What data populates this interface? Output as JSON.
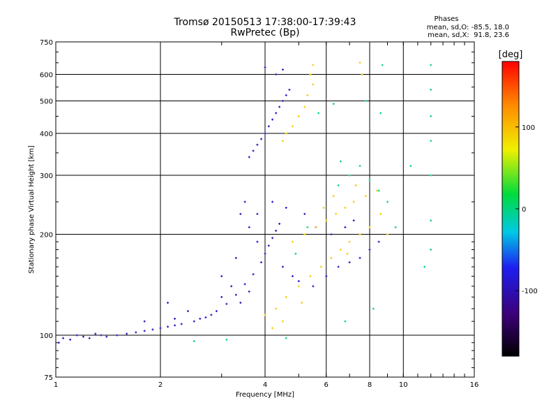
{
  "chart_data": {
    "type": "scatter",
    "title": "Tromsø 20150513 17:38:00-17:39:43",
    "subtitle": "RwPretec (Bp)",
    "xlabel": "Frequency [MHz]",
    "ylabel": "Stationary phase Virtual Height [km]",
    "x_scale": "log",
    "y_scale": "log",
    "xlim": [
      1,
      16
    ],
    "ylim": [
      75,
      750
    ],
    "x_ticks": [
      1,
      2,
      4,
      6,
      8,
      10,
      16
    ],
    "y_ticks": [
      75,
      100,
      200,
      300,
      400,
      500,
      600,
      750
    ],
    "grid": true,
    "legend": {
      "title": "Phases",
      "line1": "mean, sd,O: -85.5, 18.0",
      "line2": "mean, sd,X:  91.8, 23.6"
    },
    "colorbar": {
      "label": "[deg]",
      "range": [
        -180,
        180
      ],
      "ticks": [
        100,
        0,
        -100
      ]
    },
    "series": [
      {
        "mode": "O",
        "phase_deg": -95,
        "points": [
          [
            1.02,
            95
          ],
          [
            1.05,
            98
          ],
          [
            1.1,
            97
          ],
          [
            1.15,
            100
          ],
          [
            1.2,
            99
          ],
          [
            1.25,
            98
          ],
          [
            1.3,
            101
          ],
          [
            1.35,
            100
          ],
          [
            1.4,
            99
          ],
          [
            1.5,
            100
          ],
          [
            1.6,
            101
          ],
          [
            1.7,
            102
          ],
          [
            1.8,
            103
          ],
          [
            1.9,
            104
          ],
          [
            2.0,
            105
          ],
          [
            2.1,
            106
          ],
          [
            2.2,
            107
          ],
          [
            2.3,
            108
          ],
          [
            2.5,
            110
          ],
          [
            2.7,
            113
          ],
          [
            2.9,
            118
          ],
          [
            3.1,
            124
          ],
          [
            3.3,
            132
          ],
          [
            3.5,
            142
          ],
          [
            3.7,
            152
          ],
          [
            3.9,
            165
          ],
          [
            4.0,
            175
          ],
          [
            4.1,
            185
          ],
          [
            4.2,
            195
          ],
          [
            4.3,
            205
          ],
          [
            4.4,
            215
          ],
          [
            3.6,
            340
          ],
          [
            3.7,
            355
          ],
          [
            3.8,
            370
          ],
          [
            3.9,
            385
          ],
          [
            4.0,
            400
          ],
          [
            4.1,
            420
          ],
          [
            4.2,
            440
          ],
          [
            4.3,
            460
          ],
          [
            4.4,
            480
          ],
          [
            4.5,
            500
          ],
          [
            4.6,
            520
          ],
          [
            4.7,
            540
          ],
          [
            4.3,
            600
          ],
          [
            4.5,
            620
          ],
          [
            4.0,
            630
          ],
          [
            3.4,
            230
          ],
          [
            3.5,
            250
          ],
          [
            3.6,
            210
          ],
          [
            3.8,
            190
          ],
          [
            4.5,
            160
          ],
          [
            4.8,
            150
          ],
          [
            5.0,
            145
          ],
          [
            5.5,
            140
          ],
          [
            6.0,
            150
          ],
          [
            6.5,
            160
          ],
          [
            7.0,
            165
          ],
          [
            7.5,
            170
          ],
          [
            8.0,
            180
          ],
          [
            8.5,
            190
          ],
          [
            3.0,
            130
          ],
          [
            3.2,
            140
          ],
          [
            3.4,
            125
          ],
          [
            3.6,
            135
          ],
          [
            2.6,
            112
          ],
          [
            2.8,
            115
          ],
          [
            1.8,
            110
          ],
          [
            2.2,
            112
          ],
          [
            2.4,
            118
          ],
          [
            2.1,
            125
          ],
          [
            3.0,
            150
          ],
          [
            3.3,
            170
          ],
          [
            3.8,
            230
          ],
          [
            4.2,
            250
          ],
          [
            4.6,
            240
          ],
          [
            5.2,
            230
          ],
          [
            5.6,
            210
          ],
          [
            6.2,
            200
          ],
          [
            6.8,
            210
          ],
          [
            7.2,
            220
          ]
        ]
      },
      {
        "mode": "X",
        "phase_deg": 92,
        "points": [
          [
            5.4,
            600
          ],
          [
            5.5,
            560
          ],
          [
            5.3,
            520
          ],
          [
            5.2,
            480
          ],
          [
            5.0,
            450
          ],
          [
            4.8,
            420
          ],
          [
            4.6,
            400
          ],
          [
            4.5,
            380
          ],
          [
            5.5,
            640
          ],
          [
            7.5,
            650
          ],
          [
            7.6,
            600
          ],
          [
            4.0,
            115
          ],
          [
            4.3,
            120
          ],
          [
            4.6,
            130
          ],
          [
            5.0,
            140
          ],
          [
            5.4,
            150
          ],
          [
            5.8,
            160
          ],
          [
            6.2,
            170
          ],
          [
            6.6,
            180
          ],
          [
            7.0,
            190
          ],
          [
            7.5,
            200
          ],
          [
            8.0,
            210
          ],
          [
            4.8,
            190
          ],
          [
            5.2,
            200
          ],
          [
            5.6,
            210
          ],
          [
            6.0,
            220
          ],
          [
            6.4,
            230
          ],
          [
            6.8,
            240
          ],
          [
            7.2,
            250
          ],
          [
            7.8,
            260
          ],
          [
            8.4,
            270
          ],
          [
            4.2,
            105
          ],
          [
            4.5,
            110
          ],
          [
            5.1,
            125
          ],
          [
            6.9,
            175
          ],
          [
            8.6,
            230
          ],
          [
            9.0,
            200
          ],
          [
            5.9,
            240
          ],
          [
            6.3,
            260
          ],
          [
            7.3,
            280
          ]
        ]
      },
      {
        "mode": "scatter",
        "phase_deg": 0,
        "points": [
          [
            6.5,
            280
          ],
          [
            7.0,
            300
          ],
          [
            7.5,
            320
          ],
          [
            8.0,
            290
          ],
          [
            8.5,
            270
          ],
          [
            9.0,
            250
          ],
          [
            10.5,
            320
          ],
          [
            12.0,
            640
          ],
          [
            12.0,
            540
          ],
          [
            12.0,
            450
          ],
          [
            12.0,
            380
          ],
          [
            12.0,
            300
          ],
          [
            12.0,
            220
          ],
          [
            12.0,
            180
          ],
          [
            11.5,
            160
          ],
          [
            8.7,
            640
          ],
          [
            7.8,
            500
          ],
          [
            6.3,
            490
          ],
          [
            5.7,
            460
          ],
          [
            8.6,
            460
          ],
          [
            9.5,
            210
          ],
          [
            8.2,
            120
          ],
          [
            6.8,
            110
          ],
          [
            2.5,
            96
          ],
          [
            3.1,
            97
          ],
          [
            4.6,
            98
          ],
          [
            6.6,
            330
          ],
          [
            5.3,
            210
          ],
          [
            4.9,
            175
          ]
        ]
      }
    ]
  }
}
